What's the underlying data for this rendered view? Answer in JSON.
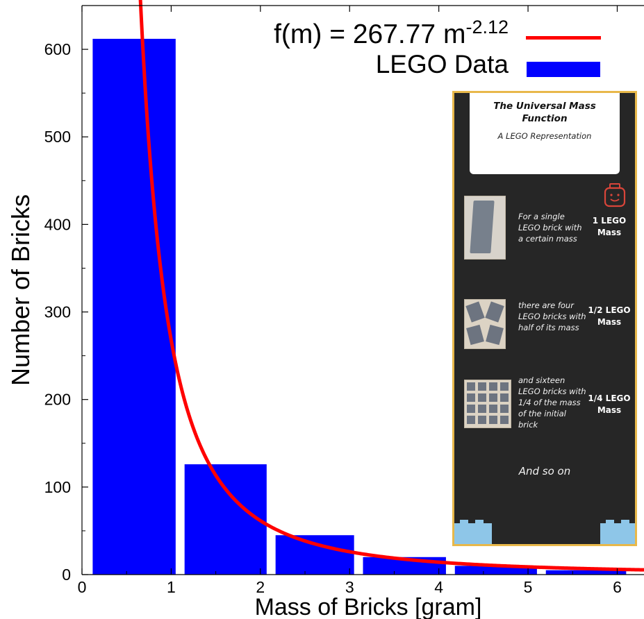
{
  "chart_data": {
    "type": "bar",
    "xlabel": "Mass of Bricks [gram]",
    "ylabel": "Number of Bricks",
    "xlim": [
      0,
      6.3
    ],
    "ylim": [
      0,
      650
    ],
    "xticks": [
      "0",
      "1",
      "2",
      "3",
      "4",
      "5",
      "6"
    ],
    "yticks": [
      "0",
      "100",
      "200",
      "300",
      "400",
      "500",
      "600"
    ],
    "bars": [
      {
        "x_start": 0.12,
        "x_end": 1.05,
        "value": 612
      },
      {
        "x_start": 1.15,
        "x_end": 2.07,
        "value": 126
      },
      {
        "x_start": 2.17,
        "x_end": 3.05,
        "value": 45
      },
      {
        "x_start": 3.15,
        "x_end": 4.08,
        "value": 20
      },
      {
        "x_start": 4.18,
        "x_end": 5.1,
        "value": 10
      },
      {
        "x_start": 5.2,
        "x_end": 6.1,
        "value": 5
      }
    ],
    "fit": {
      "name": "f(m) = 267.77 m",
      "exponent": "-2.12",
      "a": 267.77,
      "b": -2.12,
      "color": "#ff0000"
    },
    "series_name": "LEGO Data",
    "bar_color": "#0000ff",
    "legend_position": "top-right",
    "grid": false
  },
  "inset": {
    "title": "The Universal Mass Function",
    "subtitle": "A LEGO Representation",
    "rows": [
      {
        "desc": "For a single LEGO brick with a certain mass",
        "label": "1 LEGO Mass"
      },
      {
        "desc": "there are four LEGO bricks with half of its mass",
        "label": "1/2 LEGO Mass"
      },
      {
        "desc": "and sixteen LEGO bricks with 1/4 of the mass of the initial brick",
        "label": "1/4 LEGO Mass"
      }
    ],
    "footer": "And so on",
    "border_color": "#e8b84a",
    "background_color": "#262626"
  }
}
